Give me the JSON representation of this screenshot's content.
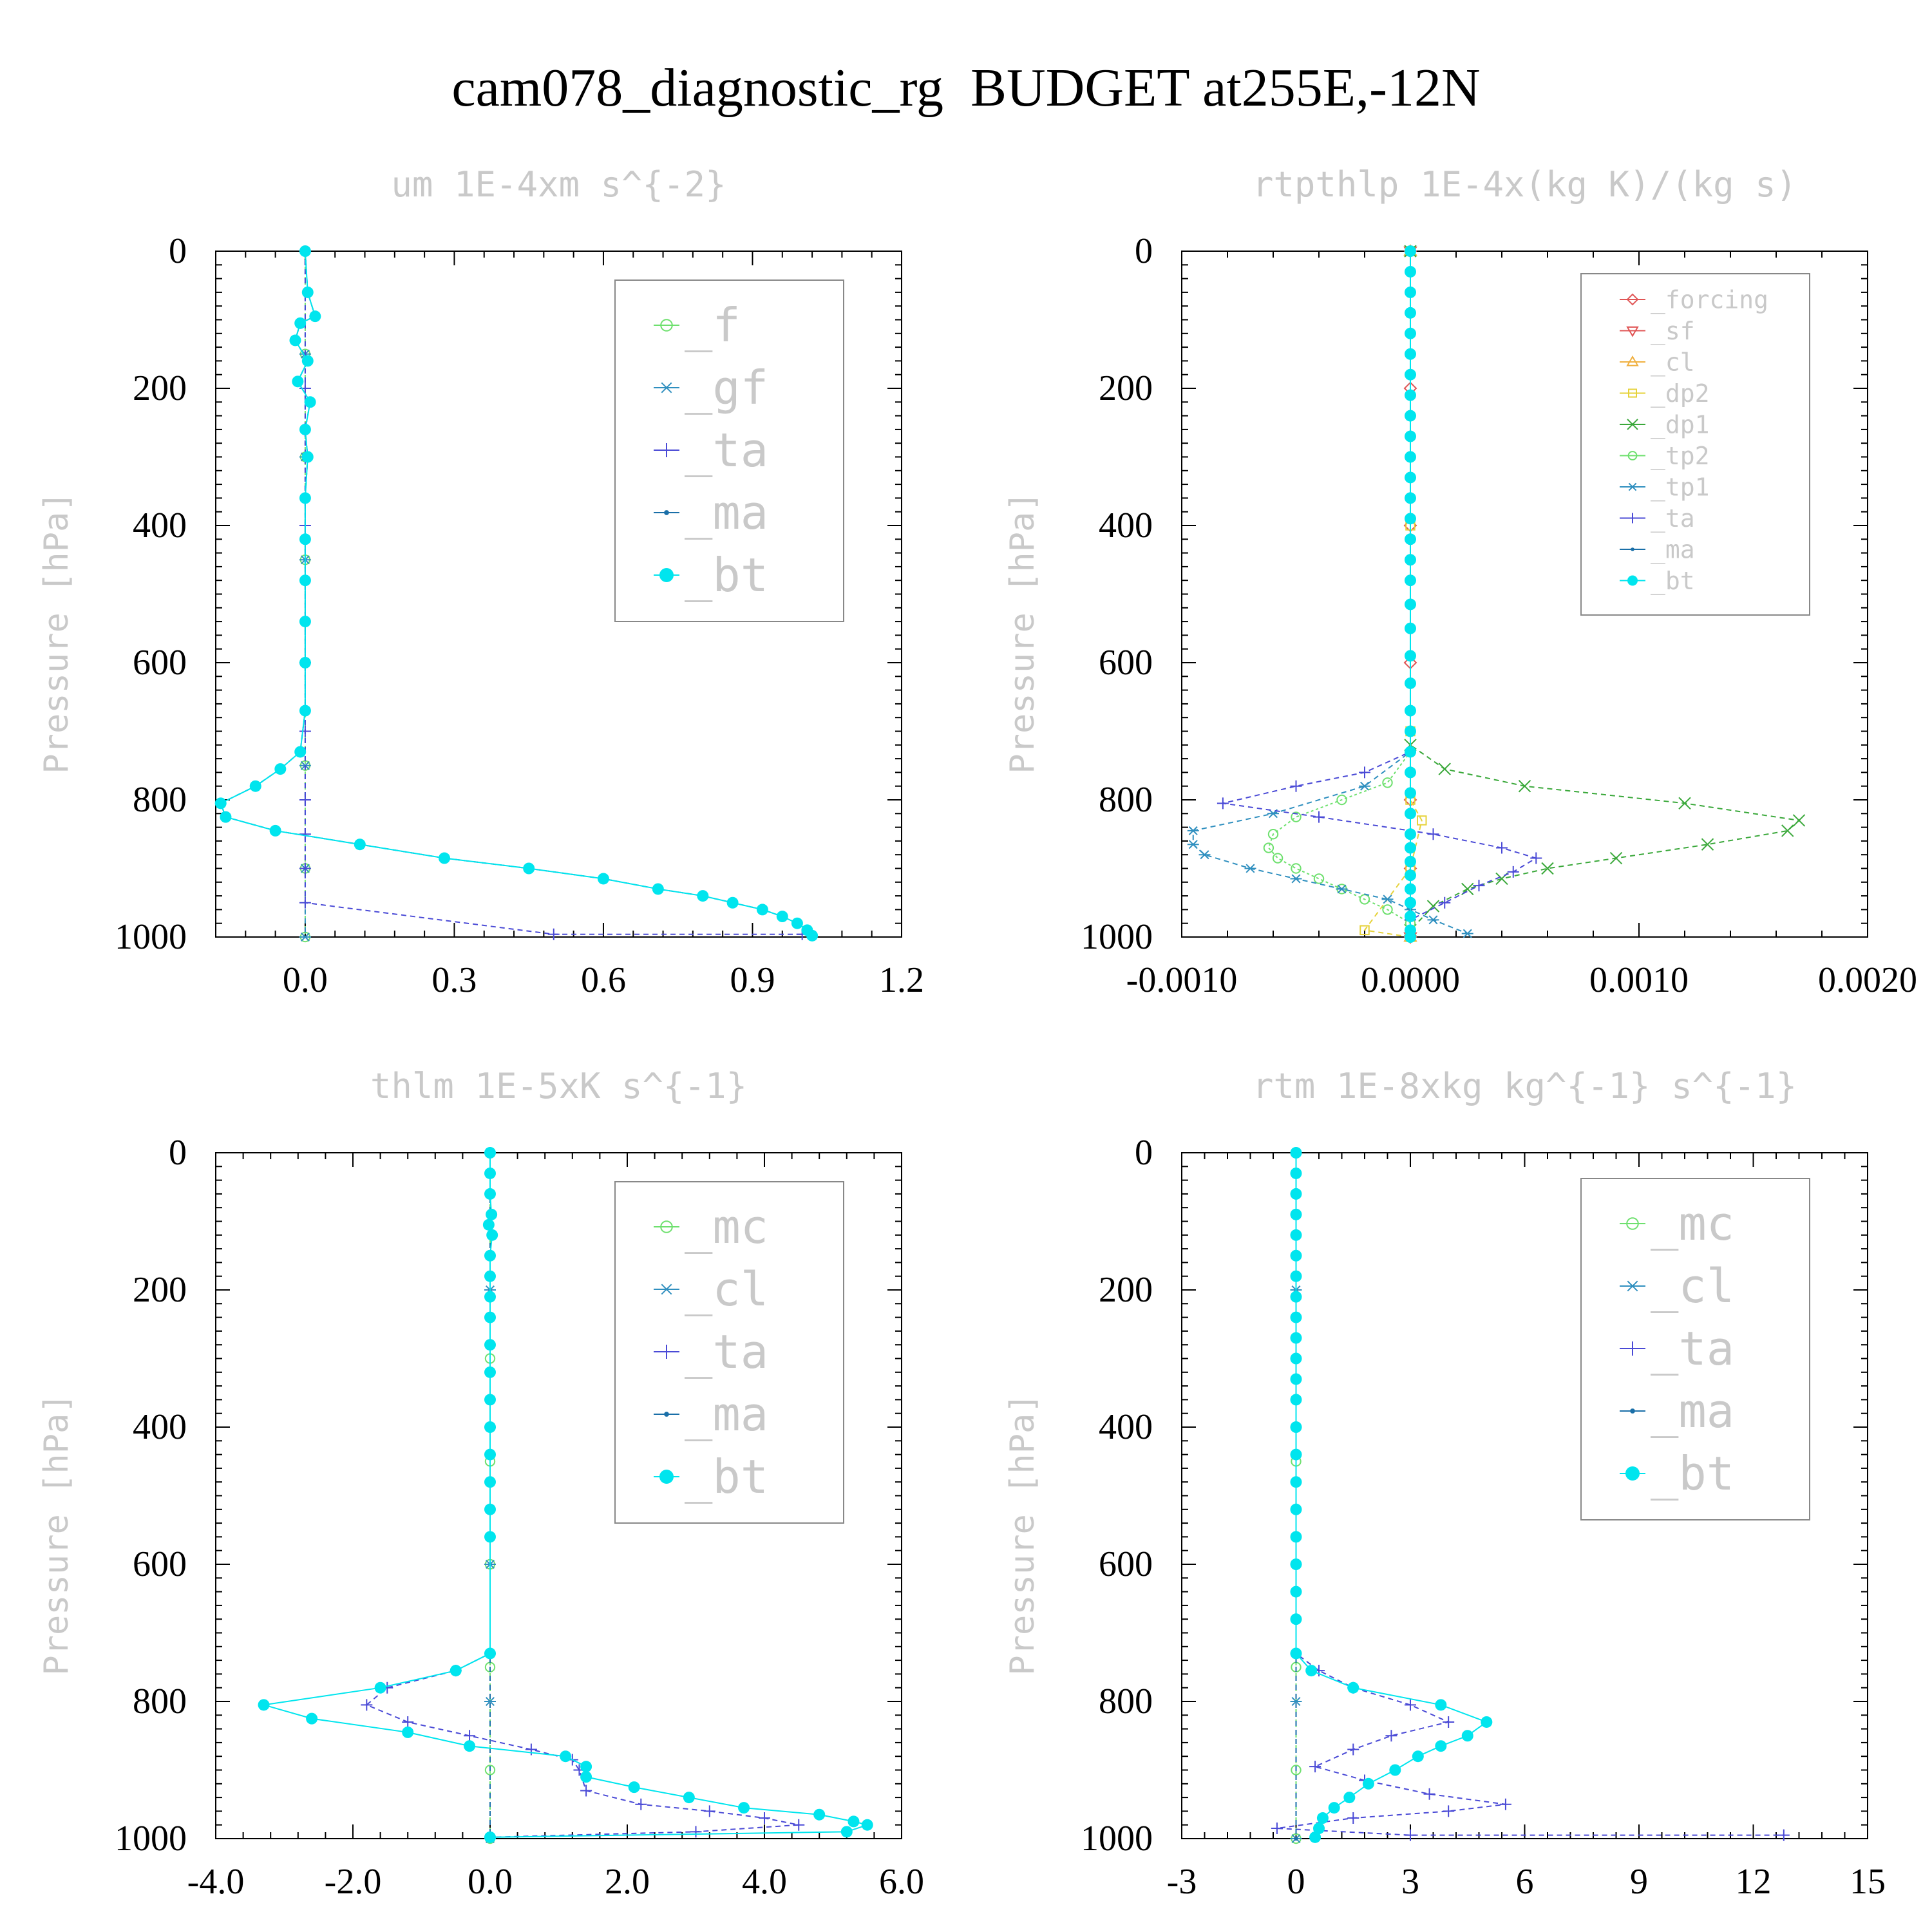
{
  "figure_title": "cam078_diagnostic_rg  BUDGET at255E,-12N",
  "colors": {
    "_f": "#6ee06e",
    "_mc": "#6ee06e",
    "_gf": "#2f8fbf",
    "_cl": "#2f8fbf",
    "_ta": "#4a4ad6",
    "_ma": "#1a6fa8",
    "_bt": "#00e5ee",
    "_forcing": "#e05555",
    "_sf": "#e05555",
    "_cl_r": "#f0b040",
    "_dp2": "#e6d23a",
    "_dp1": "#3aa83a",
    "_tp2": "#6ee06e",
    "_tp1": "#2f8fbf"
  },
  "chart_data": [
    {
      "type": "line",
      "title": "um  1E-4xm s^{-2}",
      "ylabel": "Pressure [hPa]",
      "xlim": [
        -0.18,
        1.2
      ],
      "ylim": [
        1000,
        0
      ],
      "xticks": [
        "0.0",
        "0.3",
        "0.6",
        "0.9",
        "1.2"
      ],
      "xtick_values": [
        0.0,
        0.3,
        0.6,
        0.9,
        1.2
      ],
      "yticks": [
        "0",
        "200",
        "400",
        "600",
        "800",
        "1000"
      ],
      "grid": false,
      "legend_position": "top-right",
      "series": [
        {
          "name": "_f",
          "marker": "circle-open",
          "color": "#6ee06e",
          "x": [
            0,
            0,
            0,
            0,
            0,
            0,
            0,
            0
          ],
          "y": [
            0,
            150,
            300,
            450,
            600,
            750,
            900,
            1000
          ]
        },
        {
          "name": "_gf",
          "marker": "star",
          "color": "#2f8fbf",
          "x": [
            0,
            0,
            0,
            0,
            0,
            0,
            0,
            0
          ],
          "y": [
            0,
            150,
            300,
            450,
            600,
            750,
            900,
            1000
          ]
        },
        {
          "name": "_ta",
          "marker": "plus",
          "color": "#4a4ad6",
          "x": [
            0,
            0,
            0,
            0,
            0,
            0,
            0,
            0,
            0,
            0.5,
            1.0
          ],
          "y": [
            0,
            200,
            400,
            600,
            700,
            800,
            850,
            900,
            950,
            996,
            996
          ]
        },
        {
          "name": "_ma",
          "marker": "dot",
          "color": "#1a6fa8",
          "x": [
            0,
            0.005,
            0.02,
            -0.01,
            -0.02,
            0.005,
            -0.015,
            0.01,
            0,
            0.005,
            0,
            0,
            0,
            0,
            0,
            0,
            -0.01,
            -0.05,
            -0.1,
            -0.17,
            -0.16,
            -0.06,
            0.11,
            0.28,
            0.45,
            0.6,
            0.71,
            0.8,
            0.86,
            0.92,
            0.96,
            0.99,
            1.01,
            1.02
          ],
          "y": [
            0,
            60,
            95,
            105,
            130,
            160,
            190,
            220,
            260,
            300,
            360,
            420,
            480,
            540,
            600,
            670,
            730,
            755,
            780,
            805,
            825,
            845,
            865,
            885,
            900,
            915,
            930,
            940,
            950,
            960,
            970,
            980,
            990,
            998
          ]
        },
        {
          "name": "_bt",
          "marker": "dot-filled",
          "color": "#00e5ee",
          "x": [
            0,
            0.005,
            0.02,
            -0.01,
            -0.02,
            0.005,
            -0.015,
            0.01,
            0,
            0.005,
            0,
            0,
            0,
            0,
            0,
            0,
            -0.01,
            -0.05,
            -0.1,
            -0.17,
            -0.16,
            -0.06,
            0.11,
            0.28,
            0.45,
            0.6,
            0.71,
            0.8,
            0.86,
            0.92,
            0.96,
            0.99,
            1.01,
            1.02
          ],
          "y": [
            0,
            60,
            95,
            105,
            130,
            160,
            190,
            220,
            260,
            300,
            360,
            420,
            480,
            540,
            600,
            670,
            730,
            755,
            780,
            805,
            825,
            845,
            865,
            885,
            900,
            915,
            930,
            940,
            950,
            960,
            970,
            980,
            990,
            998
          ]
        }
      ]
    },
    {
      "type": "line",
      "title": "rtpthlp  1E-4x(kg K)/(kg s)",
      "ylabel": "Pressure [hPa]",
      "xlim": [
        -0.001,
        0.002
      ],
      "ylim": [
        1000,
        0
      ],
      "xticks": [
        "-0.0010",
        "0.0000",
        "0.0010",
        "0.0020"
      ],
      "xtick_values": [
        -0.001,
        0.0,
        0.001,
        0.002
      ],
      "yticks": [
        "0",
        "200",
        "400",
        "600",
        "800",
        "1000"
      ],
      "grid": false,
      "legend_position": "top-right",
      "series": [
        {
          "name": "_forcing",
          "marker": "diamond",
          "color": "#e05555",
          "x": [
            0,
            0,
            0,
            0,
            0,
            0,
            0
          ],
          "y": [
            0,
            200,
            400,
            600,
            800,
            900,
            1000
          ]
        },
        {
          "name": "_sf",
          "marker": "triangle-down",
          "color": "#e05555",
          "x": [
            0,
            0
          ],
          "y": [
            0,
            1000
          ]
        },
        {
          "name": "_cl",
          "marker": "triangle-up",
          "color": "#f0b040",
          "x": [
            0,
            0
          ],
          "y": [
            0,
            1000
          ]
        },
        {
          "name": "_dp2",
          "marker": "square",
          "color": "#e6d23a",
          "x": [
            0,
            0,
            0,
            0,
            5e-05,
            0,
            -0.0002,
            0
          ],
          "y": [
            0,
            400,
            700,
            800,
            830,
            900,
            990,
            1000
          ]
        },
        {
          "name": "_dp1",
          "marker": "x",
          "color": "#3aa83a",
          "x": [
            0,
            0,
            0.00015,
            0.0005,
            0.0012,
            0.0017,
            0.00165,
            0.0013,
            0.0009,
            0.0006,
            0.0004,
            0.00025,
            0.0001,
            0
          ],
          "y": [
            0,
            720,
            755,
            780,
            805,
            830,
            845,
            865,
            885,
            900,
            915,
            930,
            955,
            990
          ]
        },
        {
          "name": "_tp2",
          "marker": "circle-open",
          "color": "#6ee06e",
          "x": [
            0,
            0,
            -0.0001,
            -0.0003,
            -0.0005,
            -0.0006,
            -0.00062,
            -0.00058,
            -0.0005,
            -0.0004,
            -0.0003,
            -0.0002,
            -0.0001,
            0
          ],
          "y": [
            0,
            730,
            775,
            800,
            825,
            850,
            870,
            885,
            900,
            915,
            930,
            945,
            960,
            980
          ]
        },
        {
          "name": "_tp1",
          "marker": "star",
          "color": "#2f8fbf",
          "x": [
            0,
            0,
            -0.0002,
            -0.0006,
            -0.00095,
            -0.00095,
            -0.0009,
            -0.0007,
            -0.0005,
            -0.0003,
            -0.0001,
            0,
            0.0001,
            0.00025
          ],
          "y": [
            0,
            730,
            780,
            820,
            845,
            865,
            880,
            900,
            915,
            930,
            945,
            960,
            975,
            995
          ]
        },
        {
          "name": "_ta",
          "marker": "plus",
          "color": "#4a4ad6",
          "x": [
            0,
            0,
            -0.0002,
            -0.0005,
            -0.00082,
            -0.0004,
            0.0001,
            0.0004,
            0.00055,
            0.00045,
            0.0003,
            0.00015,
            0
          ],
          "y": [
            0,
            730,
            760,
            780,
            805,
            825,
            850,
            870,
            885,
            905,
            925,
            950,
            975
          ]
        },
        {
          "name": "_ma",
          "marker": "dot",
          "color": "#1a6fa8",
          "x": [
            0,
            0
          ],
          "y": [
            0,
            1000
          ]
        },
        {
          "name": "_bt",
          "marker": "dot-filled",
          "color": "#00e5ee",
          "x": [
            0,
            0,
            0,
            0,
            0,
            0,
            0,
            0,
            0,
            0,
            0,
            0,
            0,
            0,
            0,
            0,
            0,
            0,
            0,
            0,
            0,
            0,
            0,
            0,
            0,
            0,
            0,
            0,
            0,
            0,
            0,
            0,
            0,
            0,
            0,
            0
          ],
          "y": [
            0,
            30,
            60,
            90,
            120,
            150,
            180,
            210,
            240,
            270,
            300,
            330,
            360,
            390,
            420,
            450,
            480,
            515,
            550,
            590,
            630,
            670,
            700,
            730,
            760,
            790,
            820,
            850,
            870,
            890,
            910,
            930,
            950,
            970,
            990,
            1000
          ]
        }
      ]
    },
    {
      "type": "line",
      "title": "thlm  1E-5xK s^{-1}",
      "ylabel": "Pressure [hPa]",
      "xlim": [
        -4.0,
        6.0
      ],
      "ylim": [
        1000,
        0
      ],
      "xticks": [
        "-4.0",
        "-2.0",
        "0.0",
        "2.0",
        "4.0",
        "6.0"
      ],
      "xtick_values": [
        -4.0,
        -2.0,
        0.0,
        2.0,
        4.0,
        6.0
      ],
      "yticks": [
        "0",
        "200",
        "400",
        "600",
        "800",
        "1000"
      ],
      "grid": false,
      "legend_position": "top-right",
      "series": [
        {
          "name": "_mc",
          "marker": "circle-open",
          "color": "#6ee06e",
          "x": [
            0,
            0,
            0,
            0,
            0,
            0,
            0,
            0
          ],
          "y": [
            0,
            150,
            300,
            450,
            600,
            750,
            900,
            1000
          ]
        },
        {
          "name": "_cl",
          "marker": "star",
          "color": "#2f8fbf",
          "x": [
            0,
            0,
            0,
            0,
            0,
            0
          ],
          "y": [
            0,
            200,
            400,
            600,
            800,
            1000
          ]
        },
        {
          "name": "_ta",
          "marker": "plus",
          "color": "#4a4ad6",
          "x": [
            0,
            0,
            -0.5,
            -1.5,
            -1.8,
            -1.2,
            -0.3,
            0.6,
            1.2,
            1.3,
            1.4,
            2.2,
            3.2,
            4.0,
            4.5,
            3.0,
            0
          ],
          "y": [
            0,
            730,
            755,
            780,
            805,
            830,
            850,
            870,
            885,
            900,
            930,
            950,
            960,
            970,
            980,
            990,
            998
          ]
        },
        {
          "name": "_ma",
          "marker": "dot",
          "color": "#1a6fa8",
          "x": [
            0,
            0
          ],
          "y": [
            0,
            1000
          ]
        },
        {
          "name": "_bt",
          "marker": "dot-filled",
          "color": "#00e5ee",
          "x": [
            0,
            0,
            0,
            0.02,
            -0.02,
            0.03,
            0,
            0,
            0,
            0,
            0,
            0,
            0,
            0,
            0,
            0,
            0,
            0,
            0,
            -0.5,
            -1.6,
            -3.3,
            -2.6,
            -1.2,
            -0.3,
            1.1,
            1.4,
            1.4,
            2.1,
            2.9,
            3.7,
            4.8,
            5.3,
            5.5,
            5.2,
            0
          ],
          "y": [
            0,
            30,
            60,
            90,
            105,
            120,
            150,
            180,
            210,
            240,
            280,
            320,
            360,
            400,
            440,
            480,
            520,
            560,
            730,
            755,
            780,
            805,
            825,
            845,
            865,
            880,
            895,
            910,
            925,
            940,
            955,
            965,
            975,
            980,
            990,
            998
          ]
        }
      ]
    },
    {
      "type": "line",
      "title": "rtm  1E-8xkg kg^{-1} s^{-1}",
      "ylabel": "Pressure [hPa]",
      "xlim": [
        -3,
        15
      ],
      "ylim": [
        1000,
        0
      ],
      "xticks": [
        "-3",
        "0",
        "3",
        "6",
        "9",
        "12",
        "15"
      ],
      "xtick_values": [
        -3,
        0,
        3,
        6,
        9,
        12,
        15
      ],
      "yticks": [
        "0",
        "200",
        "400",
        "600",
        "800",
        "1000"
      ],
      "grid": false,
      "legend_position": "top-right",
      "series": [
        {
          "name": "_mc",
          "marker": "circle-open",
          "color": "#6ee06e",
          "x": [
            0,
            0,
            0,
            0,
            0,
            0,
            0,
            0
          ],
          "y": [
            0,
            150,
            300,
            450,
            600,
            750,
            900,
            1000
          ]
        },
        {
          "name": "_cl",
          "marker": "star",
          "color": "#2f8fbf",
          "x": [
            0,
            0,
            0,
            0,
            0,
            0
          ],
          "y": [
            0,
            200,
            400,
            600,
            800,
            1000
          ]
        },
        {
          "name": "_ta",
          "marker": "plus",
          "color": "#4a4ad6",
          "x": [
            0,
            0,
            0.6,
            1.5,
            3.0,
            4.0,
            2.5,
            1.5,
            0.5,
            1.8,
            3.5,
            5.5,
            4.0,
            1.5,
            -0.5,
            3.0,
            12.8
          ],
          "y": [
            0,
            730,
            755,
            780,
            805,
            830,
            850,
            870,
            895,
            915,
            935,
            950,
            960,
            970,
            985,
            995,
            995
          ]
        },
        {
          "name": "_ma",
          "marker": "dot",
          "color": "#1a6fa8",
          "x": [
            0,
            0
          ],
          "y": [
            0,
            1000
          ]
        },
        {
          "name": "_bt",
          "marker": "dot-filled",
          "color": "#00e5ee",
          "x": [
            0,
            0,
            0,
            0,
            0,
            0,
            0,
            0,
            0,
            0,
            0,
            0,
            0,
            0,
            0,
            0,
            0,
            0,
            0,
            0,
            0,
            0,
            0.4,
            1.5,
            3.8,
            5.0,
            4.5,
            3.8,
            3.2,
            2.6,
            1.9,
            1.4,
            1.0,
            0.7,
            0.6,
            0.5
          ],
          "y": [
            0,
            30,
            60,
            90,
            120,
            150,
            180,
            210,
            240,
            270,
            300,
            330,
            360,
            400,
            440,
            480,
            520,
            560,
            600,
            640,
            680,
            730,
            755,
            780,
            805,
            830,
            850,
            865,
            880,
            900,
            920,
            940,
            955,
            970,
            985,
            998
          ]
        }
      ]
    }
  ]
}
